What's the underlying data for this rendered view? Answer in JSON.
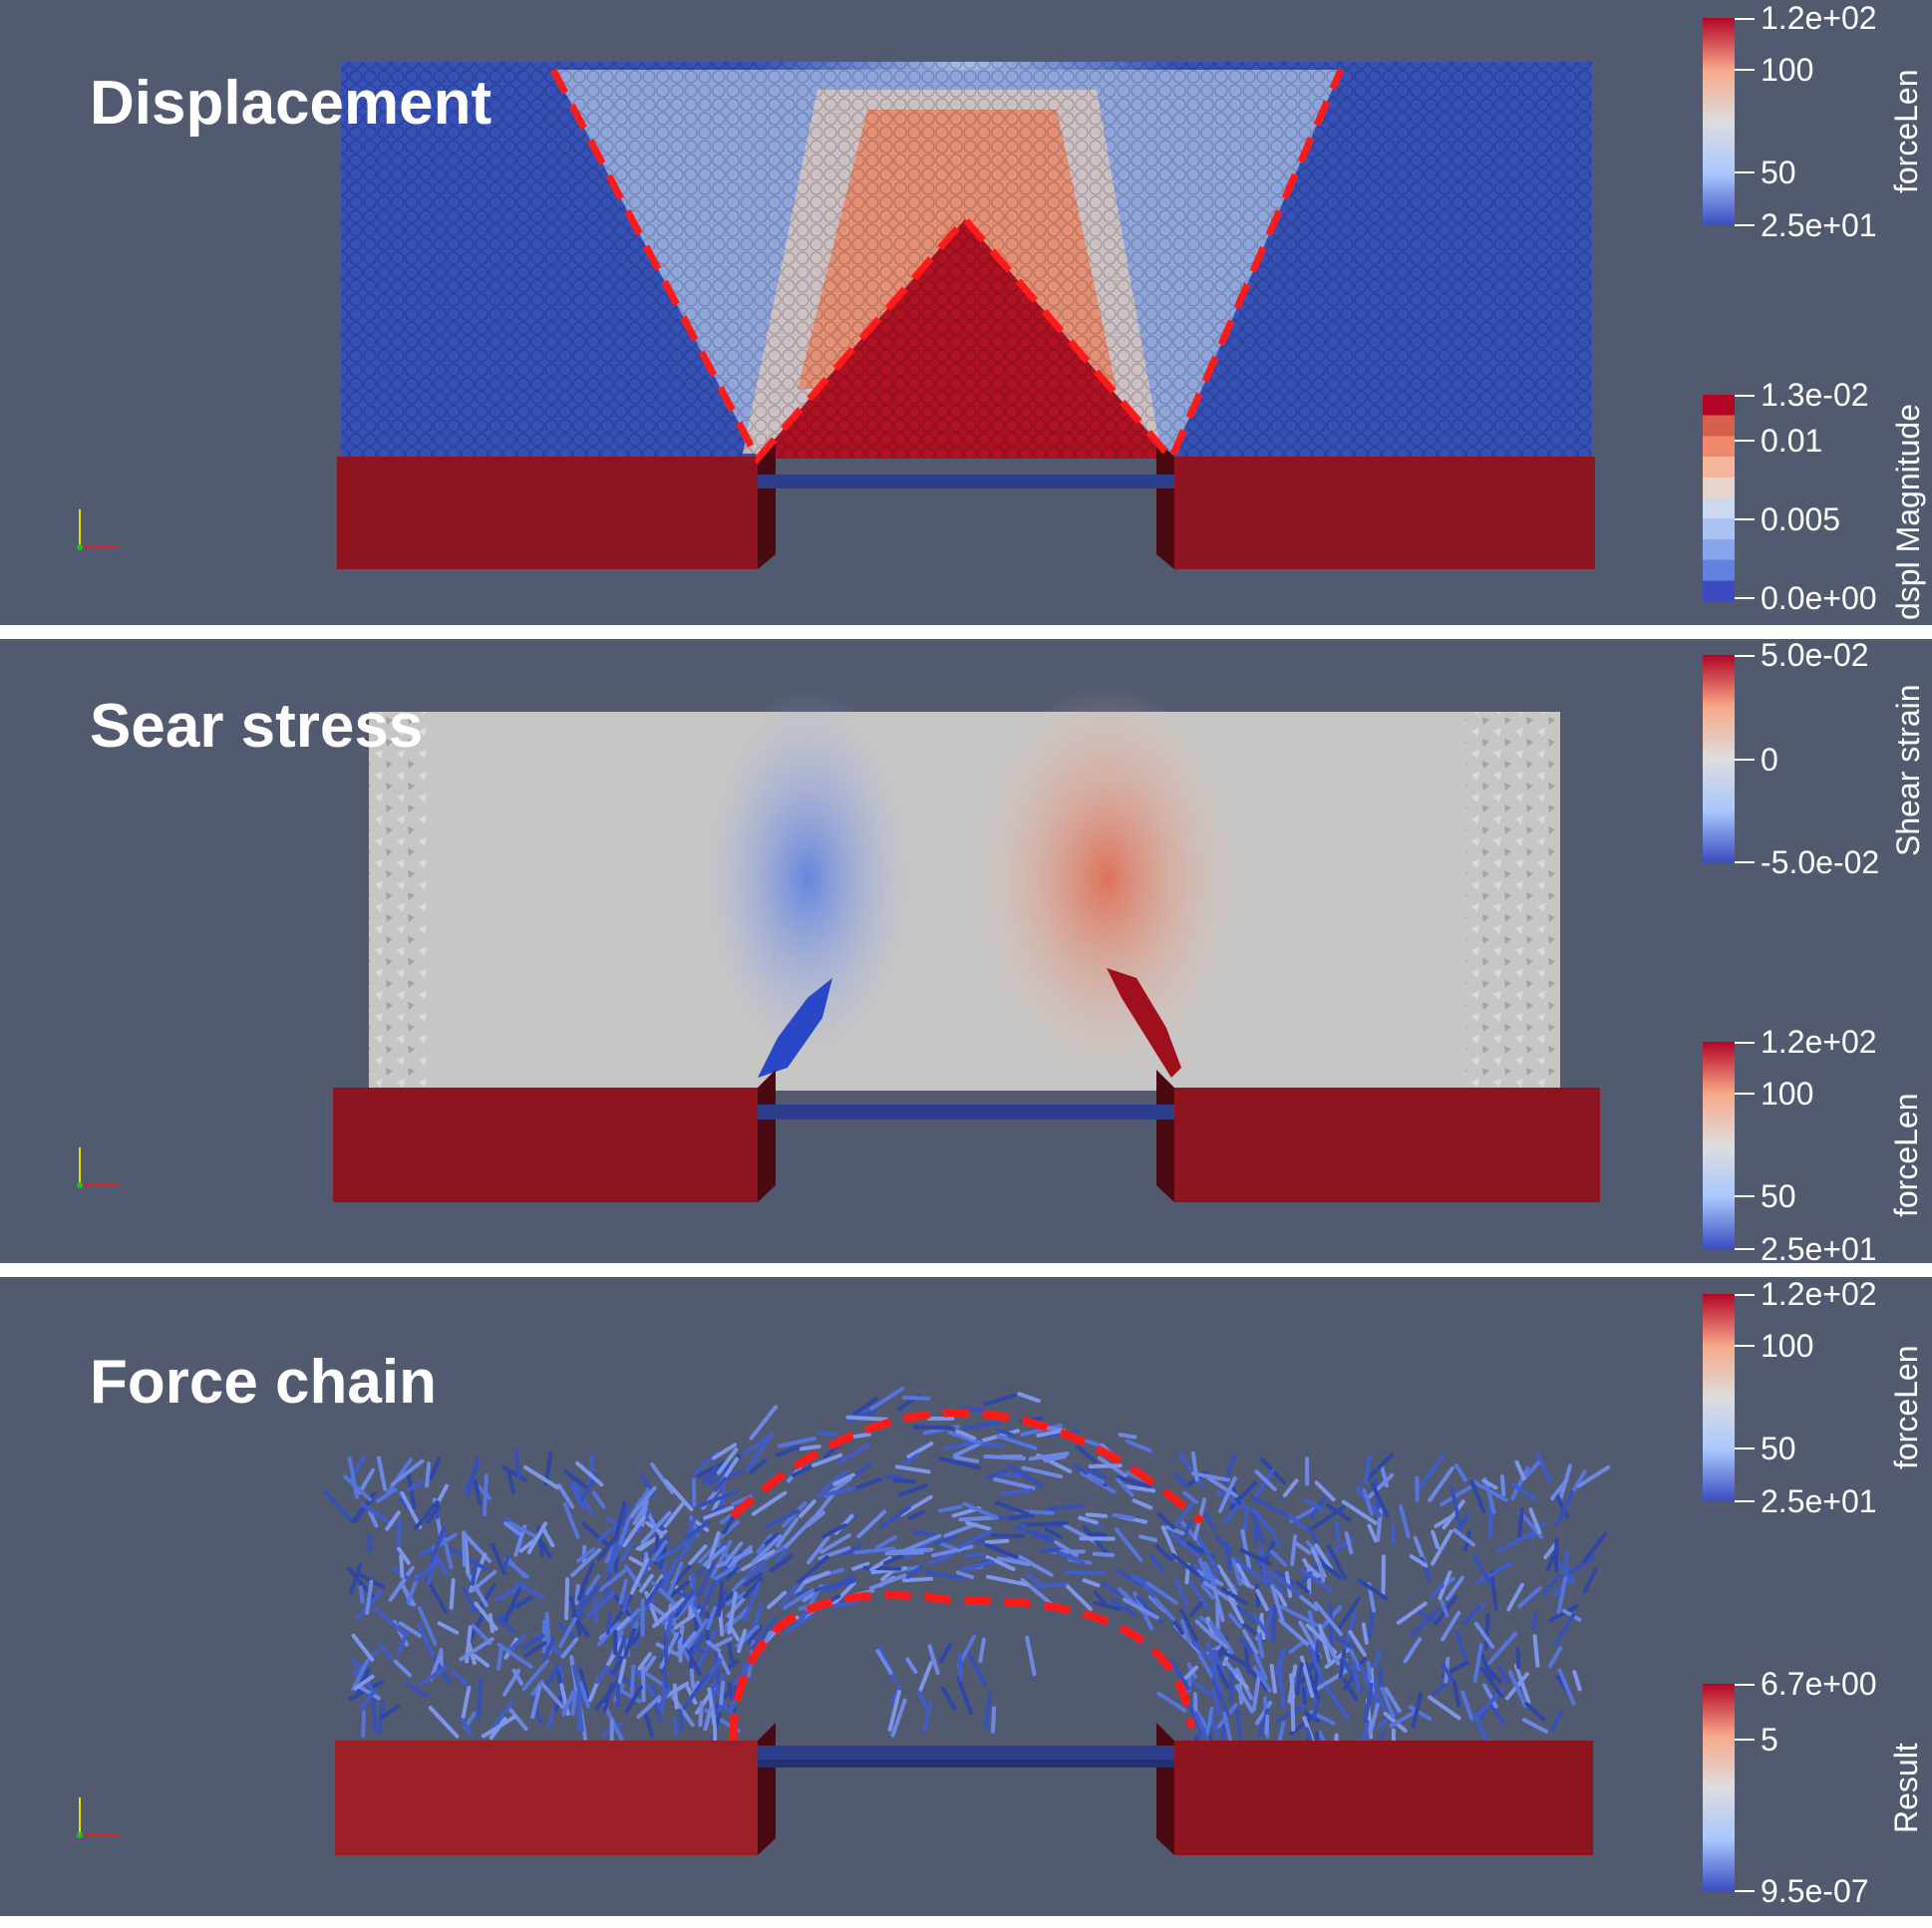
{
  "panels": [
    {
      "title": "Displacement",
      "colorbars": [
        {
          "title": "forceLen",
          "ticks": [
            "1.2e+02",
            "100",
            "50",
            "2.5e+01"
          ]
        },
        {
          "title": "dspl Magnitude",
          "ticks": [
            "1.3e-02",
            "0.01",
            "0.005",
            "0.0e+00"
          ]
        }
      ]
    },
    {
      "title": "Sear stress",
      "colorbars": [
        {
          "title": "Shear strain",
          "ticks": [
            "5.0e-02",
            "0",
            "-5.0e-02"
          ]
        },
        {
          "title": "forceLen",
          "ticks": [
            "1.2e+02",
            "100",
            "50",
            "2.5e+01"
          ]
        }
      ]
    },
    {
      "title": "Force chain",
      "colorbars": [
        {
          "title": "forceLen",
          "ticks": [
            "1.2e+02",
            "100",
            "50",
            "2.5e+01"
          ]
        },
        {
          "title": "Result",
          "ticks": [
            "6.7e+00",
            "5",
            "9.5e-07"
          ]
        }
      ]
    }
  ],
  "colors": {
    "background": "#525a70",
    "support_red": "#8e1420",
    "trapdoor_blue": "#2d3f8c",
    "dashed_guides": "#ff1a1a",
    "colormap": [
      "#3b4cc0",
      "#aac7fd",
      "#dddddd",
      "#f7a889",
      "#b40426"
    ]
  },
  "axes_icon": "xyz-orientation-triad-icon"
}
